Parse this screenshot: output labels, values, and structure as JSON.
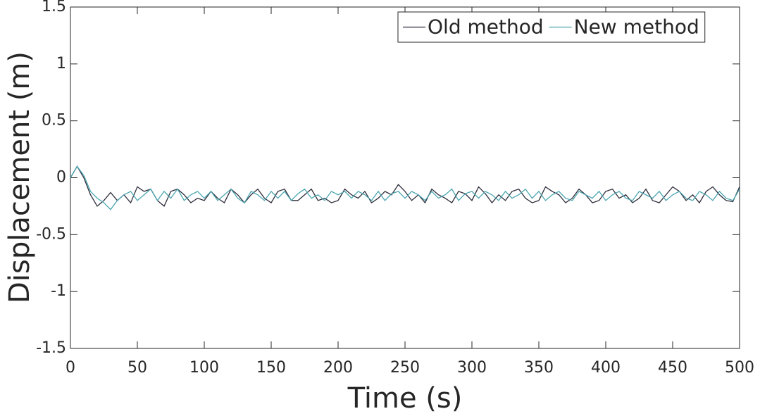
{
  "chart_data": {
    "type": "line",
    "xlabel": "Time (s)",
    "ylabel": "Displacement (m)",
    "x": [
      0,
      5,
      10,
      15,
      20,
      25,
      30,
      35,
      40,
      45,
      50,
      55,
      60,
      65,
      70,
      75,
      80,
      85,
      90,
      95,
      100,
      105,
      110,
      115,
      120,
      125,
      130,
      135,
      140,
      145,
      150,
      155,
      160,
      165,
      170,
      175,
      180,
      185,
      190,
      195,
      200,
      205,
      210,
      215,
      220,
      225,
      230,
      235,
      240,
      245,
      250,
      255,
      260,
      265,
      270,
      275,
      280,
      285,
      290,
      295,
      300,
      305,
      310,
      315,
      320,
      325,
      330,
      335,
      340,
      345,
      350,
      355,
      360,
      365,
      370,
      375,
      380,
      385,
      390,
      395,
      400,
      405,
      410,
      415,
      420,
      425,
      430,
      435,
      440,
      445,
      450,
      455,
      460,
      465,
      470,
      475,
      480,
      485,
      490,
      495,
      500
    ],
    "series": [
      {
        "name": "Old method",
        "color": "#2b2b3a",
        "values": [
          0,
          0.1,
          0.0,
          -0.15,
          -0.25,
          -0.2,
          -0.13,
          -0.2,
          -0.15,
          -0.22,
          -0.08,
          -0.12,
          -0.1,
          -0.2,
          -0.25,
          -0.12,
          -0.1,
          -0.15,
          -0.22,
          -0.18,
          -0.2,
          -0.12,
          -0.18,
          -0.22,
          -0.1,
          -0.15,
          -0.22,
          -0.15,
          -0.1,
          -0.18,
          -0.22,
          -0.12,
          -0.1,
          -0.2,
          -0.2,
          -0.15,
          -0.1,
          -0.2,
          -0.18,
          -0.22,
          -0.2,
          -0.1,
          -0.15,
          -0.18,
          -0.12,
          -0.22,
          -0.18,
          -0.12,
          -0.15,
          -0.06,
          -0.12,
          -0.2,
          -0.15,
          -0.22,
          -0.1,
          -0.15,
          -0.18,
          -0.22,
          -0.12,
          -0.14,
          -0.2,
          -0.08,
          -0.14,
          -0.22,
          -0.15,
          -0.2,
          -0.12,
          -0.1,
          -0.18,
          -0.22,
          -0.2,
          -0.08,
          -0.12,
          -0.15,
          -0.22,
          -0.18,
          -0.1,
          -0.15,
          -0.22,
          -0.2,
          -0.12,
          -0.1,
          -0.18,
          -0.15,
          -0.22,
          -0.18,
          -0.1,
          -0.2,
          -0.22,
          -0.15,
          -0.08,
          -0.12,
          -0.2,
          -0.15,
          -0.22,
          -0.12,
          -0.08,
          -0.15,
          -0.2,
          -0.21,
          -0.08
        ]
      },
      {
        "name": "New method",
        "color": "#4aa5b0",
        "values": [
          0,
          0.1,
          0.02,
          -0.12,
          -0.18,
          -0.22,
          -0.28,
          -0.2,
          -0.15,
          -0.12,
          -0.2,
          -0.15,
          -0.1,
          -0.2,
          -0.12,
          -0.18,
          -0.1,
          -0.2,
          -0.15,
          -0.12,
          -0.18,
          -0.12,
          -0.2,
          -0.15,
          -0.1,
          -0.18,
          -0.22,
          -0.12,
          -0.15,
          -0.2,
          -0.12,
          -0.18,
          -0.12,
          -0.2,
          -0.14,
          -0.1,
          -0.18,
          -0.15,
          -0.2,
          -0.12,
          -0.15,
          -0.12,
          -0.18,
          -0.12,
          -0.15,
          -0.2,
          -0.12,
          -0.2,
          -0.14,
          -0.12,
          -0.18,
          -0.12,
          -0.15,
          -0.2,
          -0.12,
          -0.18,
          -0.15,
          -0.1,
          -0.2,
          -0.14,
          -0.12,
          -0.18,
          -0.12,
          -0.15,
          -0.2,
          -0.12,
          -0.18,
          -0.15,
          -0.1,
          -0.18,
          -0.12,
          -0.2,
          -0.15,
          -0.12,
          -0.18,
          -0.2,
          -0.12,
          -0.15,
          -0.18,
          -0.12,
          -0.2,
          -0.15,
          -0.12,
          -0.18,
          -0.2,
          -0.12,
          -0.15,
          -0.18,
          -0.12,
          -0.2,
          -0.15,
          -0.12,
          -0.18,
          -0.2,
          -0.12,
          -0.15,
          -0.2,
          -0.12,
          -0.18,
          -0.2,
          -0.1
        ]
      }
    ],
    "xlim": [
      0,
      500
    ],
    "xticks": [
      0,
      50,
      100,
      150,
      200,
      250,
      300,
      350,
      400,
      450,
      500
    ],
    "ylim": [
      -1.5,
      1.5
    ],
    "yticks": [
      -1.5,
      -1,
      -0.5,
      0,
      0.5,
      1,
      1.5
    ],
    "legend": "upper right"
  }
}
